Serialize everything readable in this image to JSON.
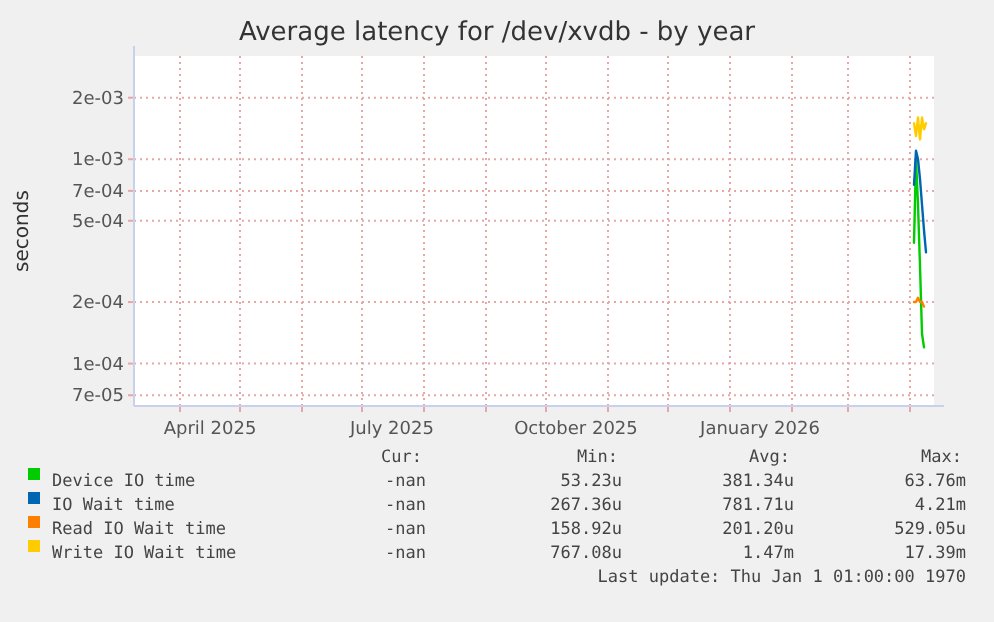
{
  "chart_data": {
    "type": "line",
    "title": "Average latency for /dev/xvdb - by year",
    "ylabel": "seconds",
    "x": [
      "2026-04-03",
      "2026-04-04",
      "2026-04-05",
      "2026-04-06",
      "2026-04-07",
      "2026-04-08",
      "2026-04-09"
    ],
    "series": [
      {
        "name": "Device IO time",
        "color": "#00cc00",
        "values": [
          0.00039,
          0.001,
          0.0006,
          0.0003,
          0.00014,
          0.00012,
          null
        ]
      },
      {
        "name": "IO Wait time",
        "color": "#0066b3",
        "values": [
          0.00075,
          0.0011,
          0.001,
          0.0008,
          0.0006,
          0.00045,
          0.00035
        ]
      },
      {
        "name": "Read IO Wait time",
        "color": "#ff8000",
        "values": [
          0.0002,
          0.0002,
          0.00021,
          0.0002,
          0.0002,
          0.00019,
          null
        ]
      },
      {
        "name": "Write IO Wait time",
        "color": "#ffcc00",
        "values": [
          0.0015,
          0.0013,
          0.0016,
          0.00125,
          0.0016,
          0.0014,
          0.0015
        ]
      }
    ],
    "log": "y",
    "ylim": [
      6.2e-05,
      0.0032
    ],
    "yticks": [
      {
        "value": 7e-05,
        "label": "7e-05"
      },
      {
        "value": 0.0001,
        "label": "1e-04"
      },
      {
        "value": 0.0002,
        "label": "2e-04"
      },
      {
        "value": 0.0005,
        "label": "5e-04"
      },
      {
        "value": 0.0007,
        "label": "7e-04"
      },
      {
        "value": 0.001,
        "label": "1e-03"
      },
      {
        "value": 0.002,
        "label": "2e-03"
      }
    ],
    "xlim": [
      "2025-03-09",
      "2026-04-13"
    ],
    "xticks": [
      {
        "value": "2025-04-01",
        "label": null
      },
      {
        "value": "2025-05-01",
        "label": null
      },
      {
        "value": "2025-06-01",
        "label": null
      },
      {
        "value": "2025-07-01",
        "label": null
      },
      {
        "value": "2025-08-01",
        "label": null
      },
      {
        "value": "2025-09-01",
        "label": null
      },
      {
        "value": "2025-10-01",
        "label": null
      },
      {
        "value": "2025-11-01",
        "label": null
      },
      {
        "value": "2025-12-01",
        "label": null
      },
      {
        "value": "2026-01-01",
        "label": null
      },
      {
        "value": "2026-02-01",
        "label": null
      },
      {
        "value": "2026-03-01",
        "label": null
      },
      {
        "value": "2026-04-01",
        "label": null
      },
      {
        "value": "2025-04-16",
        "label": "April 2025"
      },
      {
        "value": "2025-07-16",
        "label": "July 2025"
      },
      {
        "value": "2025-10-16",
        "label": "October 2025"
      },
      {
        "value": "2026-01-16",
        "label": "January 2026"
      }
    ],
    "grid": true,
    "legend": "bottom",
    "line_style": "solid",
    "annotations": [
      "Cur:",
      "Min:",
      "Avg:",
      "Max:",
      "-nan",
      "53.23u",
      "381.34u",
      "63.76m",
      "-nan",
      "267.36u",
      "781.71u",
      "4.21m",
      "-nan",
      "158.92u",
      "201.20u",
      "529.05u",
      "-nan",
      "767.08u",
      "1.47m",
      "17.39m",
      "Last update: Thu Jan  1 01:00:00 1970"
    ]
  }
}
